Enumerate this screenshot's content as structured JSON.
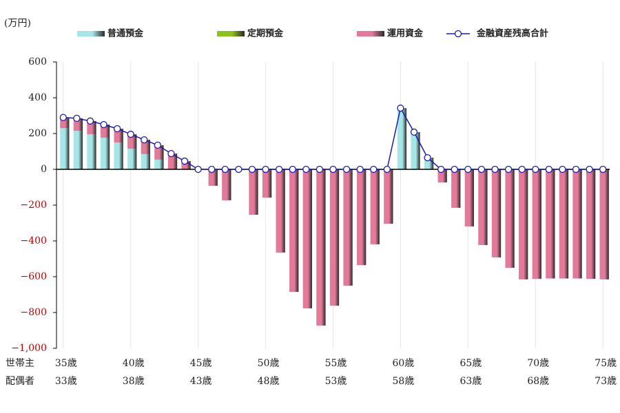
{
  "chart_data": {
    "type": "bar",
    "stacked": true,
    "unit_label": "(万円)",
    "row_labels": [
      "世帯主",
      "配偶者"
    ],
    "categories": [
      "35歳",
      null,
      null,
      null,
      null,
      "40歳",
      null,
      null,
      null,
      null,
      "45歳",
      null,
      null,
      null,
      null,
      "50歳",
      null,
      null,
      null,
      null,
      "55歳",
      null,
      null,
      null,
      null,
      "60歳",
      null,
      null,
      null,
      null,
      "65歳",
      null,
      null,
      null,
      null,
      "70歳",
      null,
      null,
      null,
      null,
      "75歳"
    ],
    "spouse_categories": [
      "33歳",
      null,
      null,
      null,
      null,
      "38歳",
      null,
      null,
      null,
      null,
      "43歳",
      null,
      null,
      null,
      null,
      "48歳",
      null,
      null,
      null,
      null,
      "53歳",
      null,
      null,
      null,
      null,
      "58歳",
      null,
      null,
      null,
      null,
      "63歳",
      null,
      null,
      null,
      null,
      "68歳",
      null,
      null,
      null,
      null,
      "73歳"
    ],
    "series": [
      {
        "name": "普通預金",
        "color": "#a6e6e6",
        "values": [
          230,
          215,
          196,
          177,
          150,
          115,
          85,
          54,
          0,
          0,
          0,
          0,
          0,
          0,
          0,
          0,
          0,
          0,
          0,
          0,
          0,
          0,
          0,
          0,
          0,
          342,
          208,
          65,
          0,
          0,
          0,
          0,
          0,
          0,
          0,
          0,
          0,
          0,
          0,
          0,
          0
        ]
      },
      {
        "name": "定期預金",
        "color": "#8cc21c",
        "values": [
          0,
          0,
          0,
          0,
          0,
          0,
          0,
          0,
          0,
          0,
          0,
          0,
          0,
          0,
          0,
          0,
          0,
          0,
          0,
          0,
          0,
          0,
          0,
          0,
          0,
          0,
          0,
          0,
          0,
          0,
          0,
          0,
          0,
          0,
          0,
          0,
          0,
          0,
          0,
          0,
          0
        ]
      },
      {
        "name": "運用資金",
        "color": "#e47a9a",
        "values": [
          60,
          70,
          74,
          73,
          77,
          81,
          80,
          81,
          88,
          46,
          0,
          -92,
          -173,
          0,
          -254,
          -158,
          -465,
          -685,
          -777,
          -873,
          -762,
          -650,
          -535,
          -419,
          -304,
          0,
          0,
          0,
          -73,
          -215,
          -319,
          -423,
          -492,
          -550,
          -615,
          -612,
          -610,
          -610,
          -610,
          -612,
          -615
        ]
      },
      {
        "name": "金融資産残高合計",
        "color": "#1a1aa8",
        "type": "line",
        "values": [
          290,
          285,
          270,
          250,
          227,
          196,
          165,
          135,
          88,
          46,
          0,
          0,
          0,
          0,
          0,
          0,
          0,
          0,
          0,
          0,
          0,
          0,
          0,
          0,
          0,
          342,
          208,
          65,
          0,
          0,
          0,
          0,
          0,
          0,
          0,
          0,
          0,
          0,
          0,
          0,
          0
        ]
      }
    ],
    "ylim": [
      -1000,
      600
    ],
    "yticks": [
      {
        "value": -1000,
        "label": "−1,000"
      },
      {
        "value": -800,
        "label": "−800"
      },
      {
        "value": -600,
        "label": "−600"
      },
      {
        "value": -400,
        "label": "−400"
      },
      {
        "value": -200,
        "label": "−200"
      },
      0,
      200,
      400,
      600
    ],
    "grid": false
  }
}
